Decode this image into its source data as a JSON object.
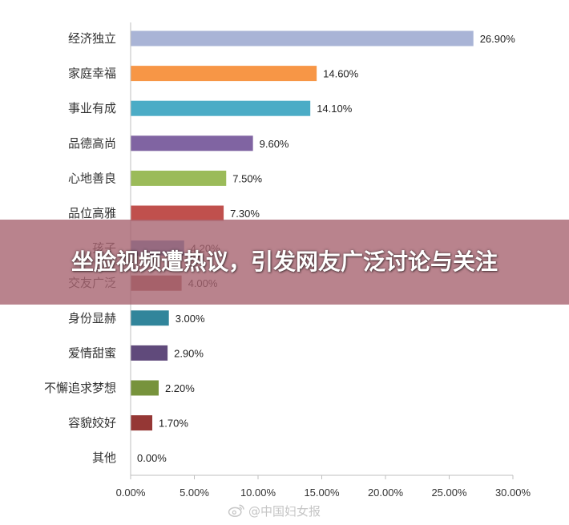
{
  "chart_data": {
    "type": "bar",
    "orientation": "horizontal",
    "categories": [
      "经济独立",
      "家庭幸福",
      "事业有成",
      "品德高尚",
      "心地善良",
      "品位高雅",
      "孩子",
      "交友广泛",
      "身份显赫",
      "爱情甜蜜",
      "不懈追求梦想",
      "容貌姣好",
      "其他"
    ],
    "values": [
      26.9,
      14.6,
      14.1,
      9.6,
      7.5,
      7.3,
      4.2,
      4.0,
      3.0,
      2.9,
      2.2,
      1.7,
      0.0
    ],
    "value_labels": [
      "26.90%",
      "14.60%",
      "14.10%",
      "9.60%",
      "7.50%",
      "7.30%",
      "4.20%",
      "4.00%",
      "3.00%",
      "2.90%",
      "2.20%",
      "1.70%",
      "0.00%"
    ],
    "colors": [
      "#a9b4d6",
      "#f79646",
      "#4bacc6",
      "#8064a2",
      "#9bbb59",
      "#c0504d",
      "#4f81bd",
      "#a0544f",
      "#31859b",
      "#604a7b",
      "#77933c",
      "#953735",
      "#4f81bd"
    ],
    "xticks": [
      "0.00%",
      "5.00%",
      "10.00%",
      "15.00%",
      "20.00%",
      "25.00%",
      "30.00%"
    ],
    "xlim": [
      0,
      30
    ],
    "grid": false,
    "legend": false,
    "title": "",
    "xlabel": "",
    "ylabel": ""
  },
  "overlay": {
    "title": "坐脸视频遭热议，引发网友广泛讨论与关注"
  },
  "watermark": {
    "text": "@中国妇女报",
    "icon": "weibo-icon"
  }
}
